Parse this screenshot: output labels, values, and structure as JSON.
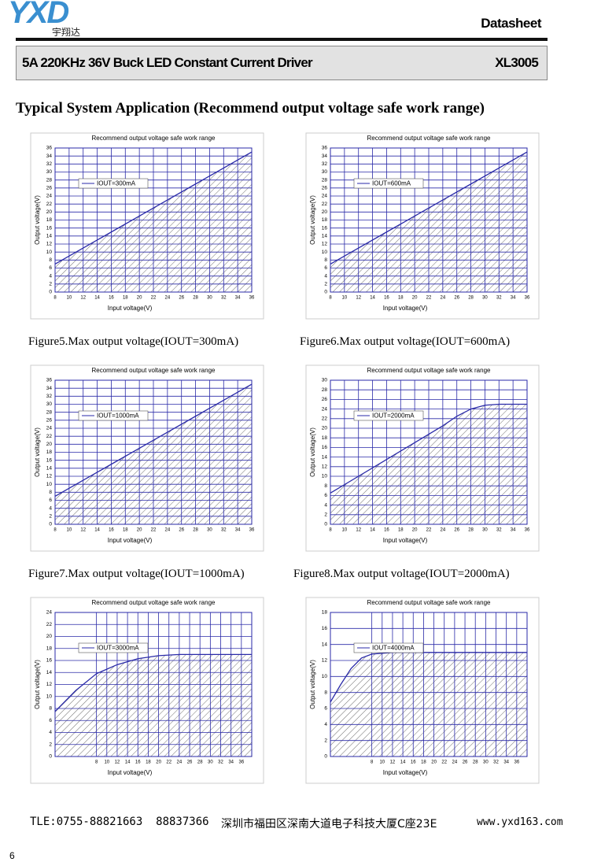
{
  "header": {
    "logo": "YXD",
    "logo_sub": "宇翔达",
    "doc_type": "Datasheet",
    "product": "5A 220KHz 36V Buck LED Constant Current Driver",
    "part": "XL3005"
  },
  "heading": "Typical System Application (Recommend output voltage safe work range)",
  "charts": [
    {
      "type": "line",
      "title": "Recommend output voltage safe work range",
      "xlabel": "Input voltage(V)",
      "ylabel": "Output voltage(V)",
      "xlim": [
        8,
        36
      ],
      "xticks": [
        8,
        10,
        12,
        14,
        16,
        18,
        20,
        22,
        24,
        26,
        28,
        30,
        32,
        34,
        36
      ],
      "ylim": [
        0,
        36
      ],
      "yticks": [
        0,
        2,
        4,
        6,
        8,
        10,
        12,
        14,
        16,
        18,
        20,
        22,
        24,
        26,
        28,
        30,
        32,
        34,
        36
      ],
      "grid": true,
      "series": [
        {
          "name": "IOUT=300mA",
          "color": "#2a2aa8",
          "x": [
            8,
            12,
            16,
            20,
            24,
            28,
            32,
            36
          ],
          "values": [
            7,
            11,
            15,
            19,
            23,
            27,
            31,
            35
          ]
        }
      ]
    },
    {
      "type": "line",
      "title": "Recommend output voltage safe work range",
      "xlabel": "Input voltage(V)",
      "ylabel": "Output voltage(V)",
      "xlim": [
        8,
        36
      ],
      "xticks": [
        8,
        10,
        12,
        14,
        16,
        18,
        20,
        22,
        24,
        26,
        28,
        30,
        32,
        34,
        36
      ],
      "ylim": [
        0,
        36
      ],
      "yticks": [
        0,
        2,
        4,
        6,
        8,
        10,
        12,
        14,
        16,
        18,
        20,
        22,
        24,
        26,
        28,
        30,
        32,
        34,
        36
      ],
      "grid": true,
      "series": [
        {
          "name": "IOUT=600mA",
          "color": "#2a2aa8",
          "x": [
            8,
            12,
            16,
            20,
            24,
            28,
            32,
            36
          ],
          "values": [
            7,
            11,
            15,
            19,
            23,
            27,
            31,
            35
          ]
        }
      ]
    },
    {
      "type": "line",
      "title": "Recommend output voltage safe work range",
      "xlabel": "Input voltage(V)",
      "ylabel": "Output voltage(V)",
      "xlim": [
        8,
        36
      ],
      "xticks": [
        8,
        10,
        12,
        14,
        16,
        18,
        20,
        22,
        24,
        26,
        28,
        30,
        32,
        34,
        36
      ],
      "ylim": [
        0,
        36
      ],
      "yticks": [
        0,
        2,
        4,
        6,
        8,
        10,
        12,
        14,
        16,
        18,
        20,
        22,
        24,
        26,
        28,
        30,
        32,
        34,
        36
      ],
      "grid": true,
      "series": [
        {
          "name": "IOUT=1000mA",
          "color": "#2a2aa8",
          "x": [
            8,
            12,
            16,
            20,
            24,
            28,
            32,
            36
          ],
          "values": [
            7,
            11,
            15,
            19,
            23,
            27,
            31,
            35
          ]
        }
      ]
    },
    {
      "type": "line",
      "title": "Recommend output voltage safe work range",
      "xlabel": "Input voltage(V)",
      "ylabel": "Output voltage(V)",
      "xlim": [
        8,
        36
      ],
      "xticks": [
        8,
        10,
        12,
        14,
        16,
        18,
        20,
        22,
        24,
        26,
        28,
        30,
        32,
        34,
        36
      ],
      "ylim": [
        0,
        30
      ],
      "yticks": [
        0,
        2,
        4,
        6,
        8,
        10,
        12,
        14,
        16,
        18,
        20,
        22,
        24,
        26,
        28,
        30
      ],
      "grid": true,
      "series": [
        {
          "name": "IOUT=2000mA",
          "color": "#2a2aa8",
          "x": [
            8,
            12,
            16,
            20,
            24,
            26,
            28,
            30,
            32,
            36
          ],
          "values": [
            6.5,
            10,
            13.5,
            17,
            20.5,
            22.5,
            24,
            24.8,
            25,
            25
          ]
        }
      ]
    },
    {
      "type": "line",
      "title": "Recommend output voltage safe work range",
      "xlabel": "Input voltage(V)",
      "ylabel": "Output voltage(V)",
      "xlim": [
        0,
        38
      ],
      "xticks": [
        8,
        10,
        12,
        14,
        16,
        18,
        20,
        22,
        24,
        26,
        28,
        30,
        32,
        34,
        36
      ],
      "ylim": [
        0,
        24
      ],
      "yticks": [
        0,
        2,
        4,
        6,
        8,
        10,
        12,
        14,
        16,
        18,
        20,
        22,
        24
      ],
      "grid": true,
      "series": [
        {
          "name": "IOUT=3000mA",
          "color": "#2a2aa8",
          "x": [
            0,
            4,
            8,
            12,
            16,
            20,
            24,
            38
          ],
          "values": [
            7.5,
            11,
            13.8,
            15.3,
            16.3,
            16.8,
            17,
            17
          ]
        }
      ]
    },
    {
      "type": "line",
      "title": "Recommend output voltage safe work range",
      "xlabel": "Input voltage(V)",
      "ylabel": "Output voltage(V)",
      "xlim": [
        0,
        38
      ],
      "xticks": [
        8,
        10,
        12,
        14,
        16,
        18,
        20,
        22,
        24,
        26,
        28,
        30,
        32,
        34,
        36
      ],
      "ylim": [
        0,
        18
      ],
      "yticks": [
        0,
        2,
        4,
        6,
        8,
        10,
        12,
        14,
        16,
        18
      ],
      "grid": true,
      "series": [
        {
          "name": "IOUT=4000mA",
          "color": "#2a2aa8",
          "x": [
            0,
            2,
            4,
            6,
            8,
            12,
            38
          ],
          "values": [
            6.8,
            9,
            11,
            12.3,
            12.8,
            13,
            13
          ]
        }
      ]
    }
  ],
  "captions": [
    "Figure5.Max output voltage(IOUT=300mA)",
    "Figure6.Max output voltage(IOUT=600mA)",
    "Figure7.Max output voltage(IOUT=1000mA)",
    "Figure8.Max output voltage(IOUT=2000mA)"
  ],
  "footer": {
    "tel": "TLE:0755-88821663  88837366",
    "address": "深圳市福田区深南大道电子科技大厦C座23E",
    "web": "www.yxd163.com",
    "page": "6"
  }
}
